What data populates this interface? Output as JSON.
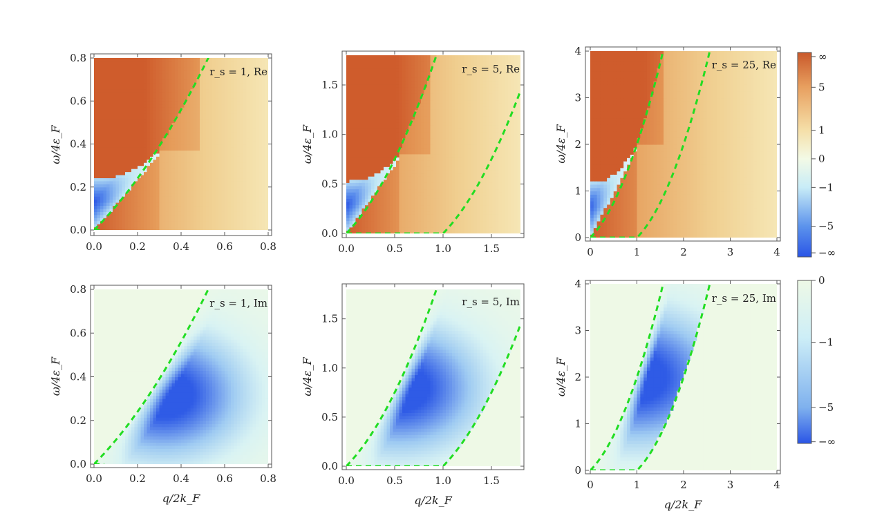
{
  "chart_data": [
    {
      "type": "heatmap",
      "part": "Re",
      "rs": 1,
      "label": "r_s = 1, Re",
      "xlabel": "",
      "ylabel": "ω/4ε_F",
      "xlim": [
        0,
        0.8
      ],
      "ylim": [
        0,
        0.8
      ],
      "xticks": [
        "0.0",
        "0.2",
        "0.4",
        "0.6",
        "0.8"
      ],
      "yticks": [
        "0.0",
        "0.2",
        "0.4",
        "0.6",
        "0.8"
      ],
      "xtick_values": [
        0,
        0.2,
        0.4,
        0.6,
        0.8
      ],
      "ytick_values": [
        0,
        0.2,
        0.4,
        0.6,
        0.8
      ],
      "plasmon_edge_q": 0.3,
      "plasmon_edge_w": 0.37,
      "low_boundary_w": 0.24
    },
    {
      "type": "heatmap",
      "part": "Re",
      "rs": 5,
      "label": "r_s = 5, Re",
      "xlabel": "",
      "ylabel": "ω/4ε_F",
      "xlim": [
        0,
        1.8
      ],
      "ylim": [
        0,
        1.8
      ],
      "xticks": [
        "0.0",
        "0.5",
        "1.0",
        "1.5"
      ],
      "yticks": [
        "0.0",
        "0.5",
        "1.0",
        "1.5"
      ],
      "xtick_values": [
        0,
        0.5,
        1.0,
        1.5
      ],
      "ytick_values": [
        0,
        0.5,
        1.0,
        1.5
      ],
      "plasmon_edge_q": 0.55,
      "plasmon_edge_w": 0.8,
      "low_boundary_w": 0.53
    },
    {
      "type": "heatmap",
      "part": "Re",
      "rs": 25,
      "label": "r_s = 25, Re",
      "xlabel": "",
      "ylabel": "ω/4ε_F",
      "xlim": [
        0,
        4
      ],
      "ylim": [
        0,
        4
      ],
      "xticks": [
        "0",
        "1",
        "2",
        "3",
        "4"
      ],
      "yticks": [
        "0",
        "1",
        "2",
        "3",
        "4"
      ],
      "xtick_values": [
        0,
        1,
        2,
        3,
        4
      ],
      "ytick_values": [
        0,
        1,
        2,
        3,
        4
      ],
      "plasmon_edge_q": 1.0,
      "plasmon_edge_w": 2.0,
      "low_boundary_w": 1.18
    },
    {
      "type": "heatmap",
      "part": "Im",
      "rs": 1,
      "label": "r_s = 1, Im",
      "xlabel": "q/2k_F",
      "ylabel": "ω/4ε_F",
      "xlim": [
        0,
        0.8
      ],
      "ylim": [
        0,
        0.8
      ],
      "xticks": [
        "0.0",
        "0.2",
        "0.4",
        "0.6",
        "0.8"
      ],
      "yticks": [
        "0.0",
        "0.2",
        "0.4",
        "0.6",
        "0.8"
      ],
      "xtick_values": [
        0,
        0.2,
        0.4,
        0.6,
        0.8
      ],
      "ytick_values": [
        0,
        0.2,
        0.4,
        0.6,
        0.8
      ],
      "peak_q": 0.32,
      "peak_w": 0.32
    },
    {
      "type": "heatmap",
      "part": "Im",
      "rs": 5,
      "label": "r_s = 5, Im",
      "xlabel": "q/2k_F",
      "ylabel": "ω/4ε_F",
      "xlim": [
        0,
        1.8
      ],
      "ylim": [
        0,
        1.8
      ],
      "xticks": [
        "0.0",
        "0.5",
        "1.0",
        "1.5"
      ],
      "yticks": [
        "0.0",
        "0.5",
        "1.0",
        "1.5"
      ],
      "xtick_values": [
        0,
        0.5,
        1.0,
        1.5
      ],
      "ytick_values": [
        0,
        0.5,
        1.0,
        1.5
      ],
      "peak_q": 0.55,
      "peak_w": 0.8
    },
    {
      "type": "heatmap",
      "part": "Im",
      "rs": 25,
      "label": "r_s = 25, Im",
      "xlabel": "q/2k_F",
      "ylabel": "ω/4ε_F",
      "xlim": [
        0,
        4
      ],
      "ylim": [
        0,
        4
      ],
      "xticks": [
        "0",
        "1",
        "2",
        "3",
        "4"
      ],
      "yticks": [
        "0",
        "1",
        "2",
        "3",
        "4"
      ],
      "xtick_values": [
        0,
        1,
        2,
        3,
        4
      ],
      "ytick_values": [
        0,
        1,
        2,
        3,
        4
      ],
      "peak_q": 0.95,
      "peak_w": 2.0
    }
  ],
  "dashed_curves": {
    "color": "#22dd22",
    "formulas": [
      "ω = q² + q",
      "ω = q² − q"
    ]
  },
  "colorbars": [
    {
      "for": "Re",
      "labels": [
        "∞",
        "5",
        "1",
        "0",
        "−1",
        "−5",
        "−∞"
      ],
      "colors": [
        "#c9582a",
        "#e8a060",
        "#f5dfa8",
        "#f3fae6",
        "#c8ecf7",
        "#5c93ec",
        "#2a55e6"
      ]
    },
    {
      "for": "Im",
      "labels": [
        "0",
        "−1",
        "−5",
        "−∞"
      ],
      "colors": [
        "#eef9e6",
        "#cdeef7",
        "#7fb1ee",
        "#2a55e6"
      ]
    }
  ],
  "colors": {
    "re_positive": "#d1612e",
    "re_negative": "#2f5be6",
    "im_background": "#eef9e6",
    "im_peak": "#2f5be6"
  }
}
